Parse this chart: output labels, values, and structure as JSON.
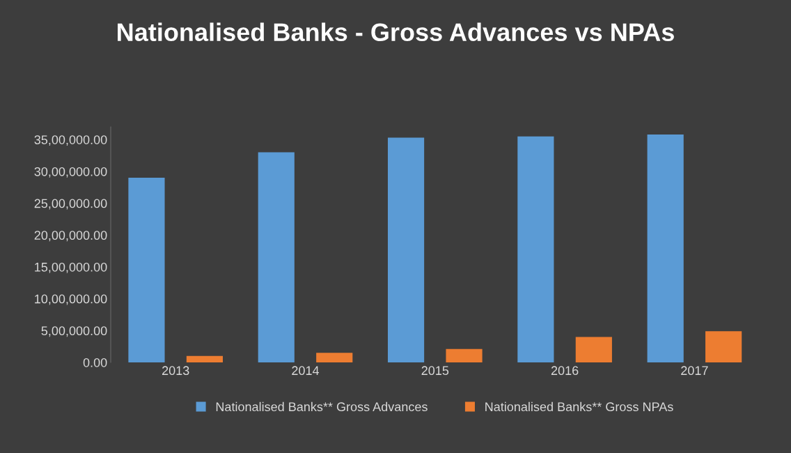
{
  "chart_data": {
    "type": "bar",
    "title": "Nationalised Banks - Gross Advances vs NPAs",
    "categories": [
      "2013",
      "2014",
      "2015",
      "2016",
      "2017"
    ],
    "series": [
      {
        "name": "Nationalised Banks** Gross Advances",
        "color": "#5b9bd5",
        "values": [
          2900000,
          3300000,
          3530000,
          3550000,
          3580000
        ]
      },
      {
        "name": "Nationalised Banks** Gross NPAs",
        "color": "#ed7d31",
        "values": [
          100000,
          150000,
          210000,
          400000,
          490000
        ]
      }
    ],
    "ylim": [
      0,
      3700000
    ],
    "yticks": [
      {
        "value": 0,
        "label": "0.00"
      },
      {
        "value": 500000,
        "label": "5,00,000.00"
      },
      {
        "value": 1000000,
        "label": "10,00,000.00"
      },
      {
        "value": 1500000,
        "label": "15,00,000.00"
      },
      {
        "value": 2000000,
        "label": "20,00,000.00"
      },
      {
        "value": 2500000,
        "label": "25,00,000.00"
      },
      {
        "value": 3000000,
        "label": "30,00,000.00"
      },
      {
        "value": 3500000,
        "label": "35,00,000.00"
      }
    ],
    "grid": false,
    "legend": "bottom"
  }
}
